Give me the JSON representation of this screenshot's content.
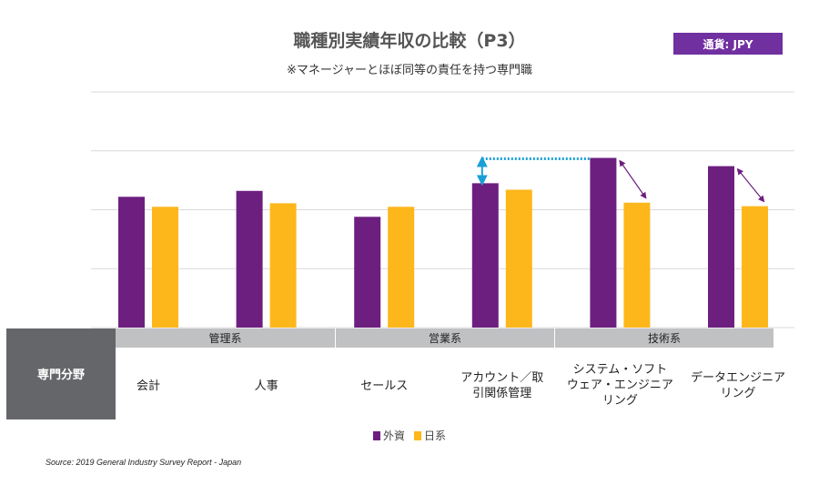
{
  "title": "職種別実績年収の比較（P3）",
  "subtitle": "※マネージャーとほぼ同等の責任を持つ専門職",
  "currency_badge": "通貨: JPY",
  "row_header": "専門分野",
  "source": "Source: 2019 General Industry Survey Report - Japan",
  "colors": {
    "foreign": "#6d1f80",
    "japanese": "#fdb71b",
    "band": "#c0c1c3",
    "header_box": "#64666a",
    "annotation_blue": "#1aa0d6",
    "annotation_purple": "#6d1f80"
  },
  "chart_data": {
    "type": "bar",
    "title": "職種別実績年収の比較（P3）",
    "ylim": [
      0,
      4
    ],
    "y_tick_labels": "none",
    "grid": true,
    "legend_placement": "bottom",
    "groups": [
      {
        "label": "管理系",
        "categories": [
          0,
          1
        ]
      },
      {
        "label": "営業系",
        "categories": [
          2,
          3
        ]
      },
      {
        "label": "技術系",
        "categories": [
          4,
          5
        ]
      }
    ],
    "categories": [
      [
        "会計"
      ],
      [
        "人事"
      ],
      [
        "セールス"
      ],
      [
        "アカウント／取",
        "引関係管理"
      ],
      [
        "システム・ソフト",
        "ウェア・エンジニア",
        "リング"
      ],
      [
        "データエンジニア",
        "リング"
      ]
    ],
    "series": [
      {
        "name": "外資",
        "color": "#6d1f80",
        "values": [
          2.22,
          2.32,
          1.88,
          2.45,
          2.88,
          2.74
        ]
      },
      {
        "name": "日系",
        "color": "#fdb71b",
        "values": [
          2.05,
          2.11,
          2.05,
          2.34,
          2.12,
          2.06
        ]
      }
    ],
    "annotations": [
      {
        "type": "gap-arrow",
        "color": "blue",
        "from_category": 3,
        "to_category": 4,
        "series": "外資"
      },
      {
        "type": "diff-arrow",
        "color": "purple",
        "category": 4
      },
      {
        "type": "diff-arrow",
        "color": "purple",
        "category": 5
      }
    ]
  }
}
